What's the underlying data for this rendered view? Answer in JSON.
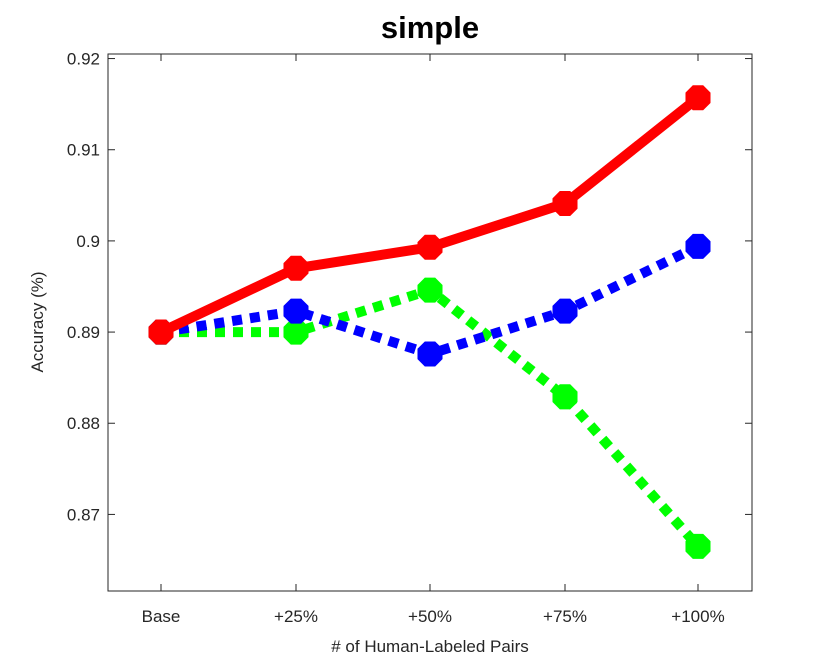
{
  "chart_data": {
    "type": "line",
    "title": "simple",
    "xlabel": "# of Human-Labeled Pairs",
    "ylabel": "Accuracy (%)",
    "categories": [
      "Base",
      "+25%",
      "+50%",
      "+75%",
      "+100%"
    ],
    "y_ticks": [
      "0.87",
      "0.88",
      "0.89",
      "0.9",
      "0.91",
      "0.92"
    ],
    "ylim": [
      0.8616,
      0.9205
    ],
    "grid": false,
    "series": [
      {
        "color": "#ff0000",
        "style": "solid",
        "values": [
          0.89,
          0.897,
          0.8993,
          0.9041,
          0.9157
        ]
      },
      {
        "color": "#0000ff",
        "style": "dotted",
        "values": [
          0.89,
          0.8923,
          0.8876,
          0.8923,
          0.8994
        ]
      },
      {
        "color": "#00ff00",
        "style": "dotted",
        "values": [
          0.89,
          0.89,
          0.8946,
          0.8829,
          0.8665
        ]
      }
    ]
  }
}
